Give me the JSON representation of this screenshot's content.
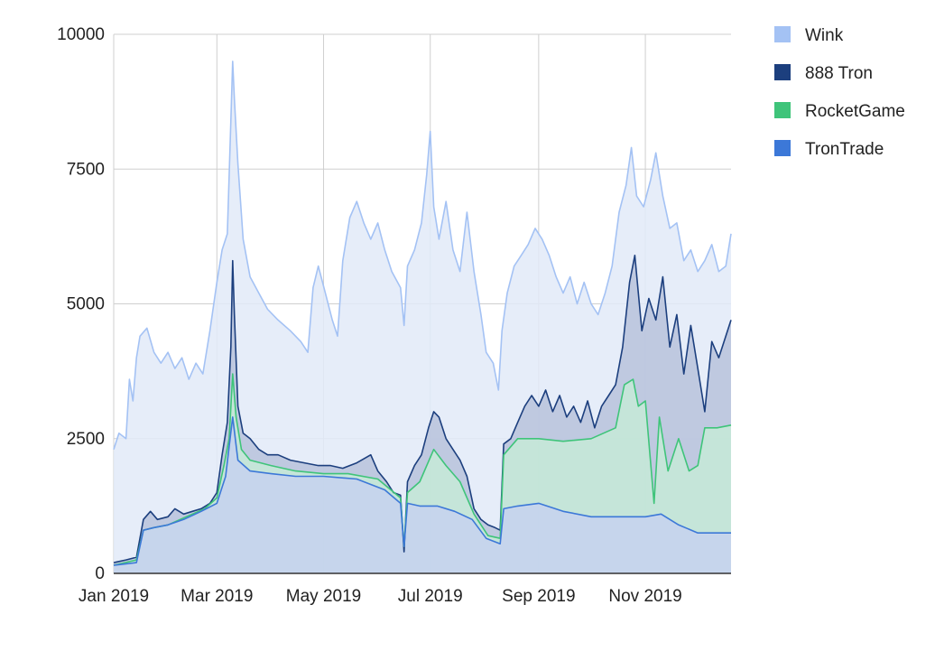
{
  "chart_data": {
    "type": "area",
    "stacking": "overlaid",
    "grid": true,
    "legend_position": "right-top",
    "ylim": [
      0,
      10000
    ],
    "xlim": [
      "2019-01-01",
      "2019-12-20"
    ],
    "y_ticks": [
      {
        "value": 0,
        "label": "0"
      },
      {
        "value": 2500,
        "label": "2500"
      },
      {
        "value": 5000,
        "label": "5000"
      },
      {
        "value": 7500,
        "label": "7500"
      },
      {
        "value": 10000,
        "label": "10000"
      }
    ],
    "x_ticks": [
      {
        "date": "2019-01-01",
        "label": "Jan 2019"
      },
      {
        "date": "2019-03-01",
        "label": "Mar 2019"
      },
      {
        "date": "2019-05-01",
        "label": "May 2019"
      },
      {
        "date": "2019-07-01",
        "label": "Jul 2019"
      },
      {
        "date": "2019-09-01",
        "label": "Sep 2019"
      },
      {
        "date": "2019-11-01",
        "label": "Nov 2019"
      }
    ],
    "series": [
      {
        "name": "Wink",
        "color": "#a4c2f4",
        "fill": "#e2eaf8",
        "points": [
          [
            "2019-01-01",
            2300
          ],
          [
            "2019-01-04",
            2600
          ],
          [
            "2019-01-08",
            2500
          ],
          [
            "2019-01-10",
            3600
          ],
          [
            "2019-01-12",
            3200
          ],
          [
            "2019-01-14",
            4000
          ],
          [
            "2019-01-16",
            4400
          ],
          [
            "2019-01-20",
            4550
          ],
          [
            "2019-01-24",
            4100
          ],
          [
            "2019-01-28",
            3900
          ],
          [
            "2019-02-01",
            4100
          ],
          [
            "2019-02-05",
            3800
          ],
          [
            "2019-02-09",
            4000
          ],
          [
            "2019-02-13",
            3600
          ],
          [
            "2019-02-17",
            3900
          ],
          [
            "2019-02-21",
            3700
          ],
          [
            "2019-02-25",
            4500
          ],
          [
            "2019-03-01",
            5400
          ],
          [
            "2019-03-04",
            6000
          ],
          [
            "2019-03-07",
            6300
          ],
          [
            "2019-03-09",
            8400
          ],
          [
            "2019-03-10",
            9500
          ],
          [
            "2019-03-11",
            8800
          ],
          [
            "2019-03-13",
            7600
          ],
          [
            "2019-03-16",
            6200
          ],
          [
            "2019-03-20",
            5500
          ],
          [
            "2019-03-25",
            5200
          ],
          [
            "2019-03-30",
            4900
          ],
          [
            "2019-04-05",
            4700
          ],
          [
            "2019-04-12",
            4500
          ],
          [
            "2019-04-18",
            4300
          ],
          [
            "2019-04-22",
            4100
          ],
          [
            "2019-04-25",
            5300
          ],
          [
            "2019-04-28",
            5700
          ],
          [
            "2019-05-02",
            5200
          ],
          [
            "2019-05-06",
            4700
          ],
          [
            "2019-05-09",
            4400
          ],
          [
            "2019-05-12",
            5800
          ],
          [
            "2019-05-16",
            6600
          ],
          [
            "2019-05-20",
            6900
          ],
          [
            "2019-05-24",
            6500
          ],
          [
            "2019-05-28",
            6200
          ],
          [
            "2019-06-01",
            6500
          ],
          [
            "2019-06-05",
            6000
          ],
          [
            "2019-06-09",
            5600
          ],
          [
            "2019-06-14",
            5300
          ],
          [
            "2019-06-16",
            4600
          ],
          [
            "2019-06-18",
            5700
          ],
          [
            "2019-06-22",
            6000
          ],
          [
            "2019-06-26",
            6500
          ],
          [
            "2019-06-29",
            7400
          ],
          [
            "2019-07-01",
            8200
          ],
          [
            "2019-07-03",
            6800
          ],
          [
            "2019-07-06",
            6200
          ],
          [
            "2019-07-10",
            6900
          ],
          [
            "2019-07-14",
            6000
          ],
          [
            "2019-07-18",
            5600
          ],
          [
            "2019-07-22",
            6700
          ],
          [
            "2019-07-26",
            5600
          ],
          [
            "2019-07-30",
            4800
          ],
          [
            "2019-08-02",
            4100
          ],
          [
            "2019-08-06",
            3900
          ],
          [
            "2019-08-09",
            3400
          ],
          [
            "2019-08-11",
            4500
          ],
          [
            "2019-08-14",
            5200
          ],
          [
            "2019-08-18",
            5700
          ],
          [
            "2019-08-22",
            5900
          ],
          [
            "2019-08-26",
            6100
          ],
          [
            "2019-08-30",
            6400
          ],
          [
            "2019-09-03",
            6200
          ],
          [
            "2019-09-07",
            5900
          ],
          [
            "2019-09-11",
            5500
          ],
          [
            "2019-09-15",
            5200
          ],
          [
            "2019-09-19",
            5500
          ],
          [
            "2019-09-23",
            5000
          ],
          [
            "2019-09-27",
            5400
          ],
          [
            "2019-10-01",
            5000
          ],
          [
            "2019-10-05",
            4800
          ],
          [
            "2019-10-09",
            5200
          ],
          [
            "2019-10-13",
            5700
          ],
          [
            "2019-10-17",
            6700
          ],
          [
            "2019-10-21",
            7200
          ],
          [
            "2019-10-24",
            7900
          ],
          [
            "2019-10-27",
            7000
          ],
          [
            "2019-10-31",
            6800
          ],
          [
            "2019-11-04",
            7300
          ],
          [
            "2019-11-07",
            7800
          ],
          [
            "2019-11-11",
            7000
          ],
          [
            "2019-11-15",
            6400
          ],
          [
            "2019-11-19",
            6500
          ],
          [
            "2019-11-23",
            5800
          ],
          [
            "2019-11-27",
            6000
          ],
          [
            "2019-12-01",
            5600
          ],
          [
            "2019-12-05",
            5800
          ],
          [
            "2019-12-09",
            6100
          ],
          [
            "2019-12-13",
            5600
          ],
          [
            "2019-12-17",
            5700
          ],
          [
            "2019-12-20",
            6300
          ]
        ]
      },
      {
        "name": "888 Tron",
        "color": "#1c3f7e",
        "fill": "#b7c2dc",
        "points": [
          [
            "2019-01-01",
            200
          ],
          [
            "2019-01-08",
            250
          ],
          [
            "2019-01-14",
            300
          ],
          [
            "2019-01-18",
            1000
          ],
          [
            "2019-01-22",
            1150
          ],
          [
            "2019-01-26",
            1000
          ],
          [
            "2019-02-01",
            1050
          ],
          [
            "2019-02-05",
            1200
          ],
          [
            "2019-02-10",
            1100
          ],
          [
            "2019-02-15",
            1150
          ],
          [
            "2019-02-20",
            1200
          ],
          [
            "2019-02-25",
            1300
          ],
          [
            "2019-03-01",
            1500
          ],
          [
            "2019-03-04",
            2200
          ],
          [
            "2019-03-07",
            2800
          ],
          [
            "2019-03-09",
            4200
          ],
          [
            "2019-03-10",
            5800
          ],
          [
            "2019-03-11",
            4800
          ],
          [
            "2019-03-13",
            3100
          ],
          [
            "2019-03-16",
            2600
          ],
          [
            "2019-03-20",
            2500
          ],
          [
            "2019-03-25",
            2300
          ],
          [
            "2019-03-30",
            2200
          ],
          [
            "2019-04-05",
            2200
          ],
          [
            "2019-04-12",
            2100
          ],
          [
            "2019-04-20",
            2050
          ],
          [
            "2019-04-28",
            2000
          ],
          [
            "2019-05-05",
            2000
          ],
          [
            "2019-05-12",
            1950
          ],
          [
            "2019-05-20",
            2050
          ],
          [
            "2019-05-28",
            2200
          ],
          [
            "2019-06-01",
            1900
          ],
          [
            "2019-06-06",
            1700
          ],
          [
            "2019-06-10",
            1500
          ],
          [
            "2019-06-14",
            1450
          ],
          [
            "2019-06-16",
            400
          ],
          [
            "2019-06-18",
            1700
          ],
          [
            "2019-06-22",
            2000
          ],
          [
            "2019-06-26",
            2200
          ],
          [
            "2019-06-30",
            2700
          ],
          [
            "2019-07-03",
            3000
          ],
          [
            "2019-07-06",
            2900
          ],
          [
            "2019-07-10",
            2500
          ],
          [
            "2019-07-14",
            2300
          ],
          [
            "2019-07-18",
            2100
          ],
          [
            "2019-07-22",
            1800
          ],
          [
            "2019-07-26",
            1200
          ],
          [
            "2019-07-30",
            1000
          ],
          [
            "2019-08-03",
            900
          ],
          [
            "2019-08-07",
            850
          ],
          [
            "2019-08-10",
            800
          ],
          [
            "2019-08-12",
            2400
          ],
          [
            "2019-08-16",
            2500
          ],
          [
            "2019-08-20",
            2800
          ],
          [
            "2019-08-24",
            3100
          ],
          [
            "2019-08-28",
            3300
          ],
          [
            "2019-09-01",
            3100
          ],
          [
            "2019-09-05",
            3400
          ],
          [
            "2019-09-09",
            3000
          ],
          [
            "2019-09-13",
            3300
          ],
          [
            "2019-09-17",
            2900
          ],
          [
            "2019-09-21",
            3100
          ],
          [
            "2019-09-25",
            2800
          ],
          [
            "2019-09-29",
            3200
          ],
          [
            "2019-10-03",
            2700
          ],
          [
            "2019-10-07",
            3100
          ],
          [
            "2019-10-11",
            3300
          ],
          [
            "2019-10-15",
            3500
          ],
          [
            "2019-10-19",
            4200
          ],
          [
            "2019-10-23",
            5400
          ],
          [
            "2019-10-26",
            5900
          ],
          [
            "2019-10-30",
            4500
          ],
          [
            "2019-11-03",
            5100
          ],
          [
            "2019-11-07",
            4700
          ],
          [
            "2019-11-11",
            5500
          ],
          [
            "2019-11-15",
            4200
          ],
          [
            "2019-11-19",
            4800
          ],
          [
            "2019-11-23",
            3700
          ],
          [
            "2019-11-27",
            4600
          ],
          [
            "2019-12-01",
            3800
          ],
          [
            "2019-12-05",
            3000
          ],
          [
            "2019-12-09",
            4300
          ],
          [
            "2019-12-13",
            4000
          ],
          [
            "2019-12-17",
            4400
          ],
          [
            "2019-12-20",
            4700
          ]
        ]
      },
      {
        "name": "RocketGame",
        "color": "#3fc47a",
        "fill": "#c6ead7",
        "points": [
          [
            "2019-01-01",
            150
          ],
          [
            "2019-01-14",
            250
          ],
          [
            "2019-01-18",
            800
          ],
          [
            "2019-01-24",
            850
          ],
          [
            "2019-02-01",
            900
          ],
          [
            "2019-02-08",
            1000
          ],
          [
            "2019-02-15",
            1100
          ],
          [
            "2019-02-22",
            1200
          ],
          [
            "2019-03-01",
            1400
          ],
          [
            "2019-03-05",
            2000
          ],
          [
            "2019-03-08",
            2500
          ],
          [
            "2019-03-10",
            3700
          ],
          [
            "2019-03-12",
            2900
          ],
          [
            "2019-03-15",
            2300
          ],
          [
            "2019-03-20",
            2100
          ],
          [
            "2019-04-01",
            2000
          ],
          [
            "2019-04-15",
            1900
          ],
          [
            "2019-05-01",
            1850
          ],
          [
            "2019-05-15",
            1850
          ],
          [
            "2019-06-01",
            1750
          ],
          [
            "2019-06-14",
            1400
          ],
          [
            "2019-06-16",
            500
          ],
          [
            "2019-06-18",
            1500
          ],
          [
            "2019-06-25",
            1700
          ],
          [
            "2019-07-03",
            2300
          ],
          [
            "2019-07-10",
            2000
          ],
          [
            "2019-07-18",
            1700
          ],
          [
            "2019-07-26",
            1100
          ],
          [
            "2019-08-03",
            700
          ],
          [
            "2019-08-10",
            650
          ],
          [
            "2019-08-12",
            2200
          ],
          [
            "2019-08-20",
            2500
          ],
          [
            "2019-09-01",
            2500
          ],
          [
            "2019-09-15",
            2450
          ],
          [
            "2019-10-01",
            2500
          ],
          [
            "2019-10-15",
            2700
          ],
          [
            "2019-10-20",
            3500
          ],
          [
            "2019-10-25",
            3600
          ],
          [
            "2019-10-28",
            3100
          ],
          [
            "2019-11-01",
            3200
          ],
          [
            "2019-11-06",
            1300
          ],
          [
            "2019-11-09",
            2900
          ],
          [
            "2019-11-14",
            1900
          ],
          [
            "2019-11-20",
            2500
          ],
          [
            "2019-11-26",
            1900
          ],
          [
            "2019-12-01",
            2000
          ],
          [
            "2019-12-05",
            2700
          ],
          [
            "2019-12-12",
            2700
          ],
          [
            "2019-12-20",
            2750
          ]
        ]
      },
      {
        "name": "TronTrade",
        "color": "#3c78d8",
        "fill": "#c5d2ee",
        "points": [
          [
            "2019-01-01",
            150
          ],
          [
            "2019-01-14",
            200
          ],
          [
            "2019-01-18",
            800
          ],
          [
            "2019-01-24",
            850
          ],
          [
            "2019-02-01",
            900
          ],
          [
            "2019-02-10",
            1000
          ],
          [
            "2019-02-20",
            1150
          ],
          [
            "2019-03-01",
            1300
          ],
          [
            "2019-03-06",
            1800
          ],
          [
            "2019-03-10",
            2900
          ],
          [
            "2019-03-13",
            2100
          ],
          [
            "2019-03-20",
            1900
          ],
          [
            "2019-04-01",
            1850
          ],
          [
            "2019-04-15",
            1800
          ],
          [
            "2019-05-01",
            1800
          ],
          [
            "2019-05-20",
            1750
          ],
          [
            "2019-06-05",
            1550
          ],
          [
            "2019-06-14",
            1300
          ],
          [
            "2019-06-16",
            500
          ],
          [
            "2019-06-18",
            1300
          ],
          [
            "2019-06-25",
            1250
          ],
          [
            "2019-07-05",
            1250
          ],
          [
            "2019-07-15",
            1150
          ],
          [
            "2019-07-25",
            1000
          ],
          [
            "2019-08-02",
            650
          ],
          [
            "2019-08-10",
            550
          ],
          [
            "2019-08-12",
            1200
          ],
          [
            "2019-08-20",
            1250
          ],
          [
            "2019-09-01",
            1300
          ],
          [
            "2019-09-15",
            1150
          ],
          [
            "2019-10-01",
            1050
          ],
          [
            "2019-10-15",
            1050
          ],
          [
            "2019-11-01",
            1050
          ],
          [
            "2019-11-10",
            1100
          ],
          [
            "2019-11-20",
            900
          ],
          [
            "2019-12-01",
            750
          ],
          [
            "2019-12-10",
            750
          ],
          [
            "2019-12-20",
            750
          ]
        ]
      }
    ]
  }
}
